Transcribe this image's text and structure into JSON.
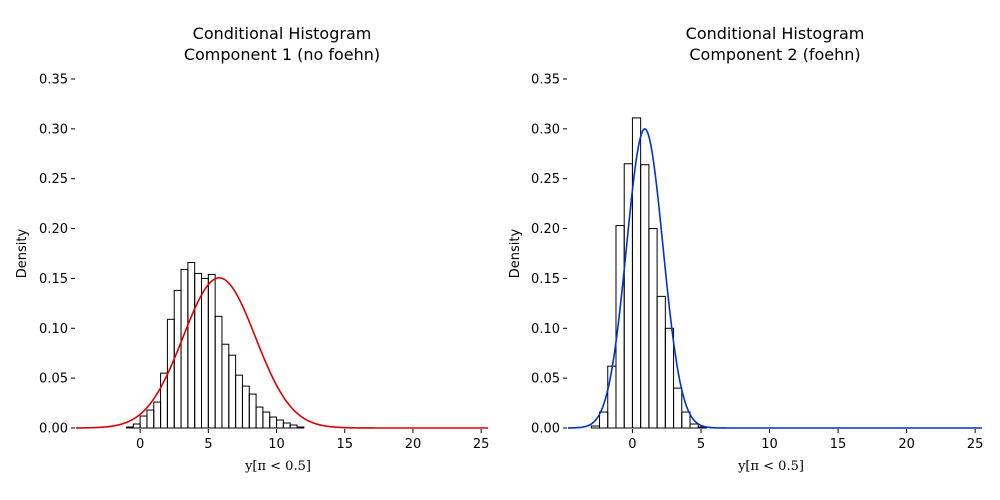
{
  "chart_data": [
    {
      "type": "bar",
      "title_line1": "Conditional Histogram",
      "title_line2": "Component 1 (no foehn)",
      "xlabel": "y[π < 0.5]",
      "ylabel": "Density",
      "xlim": [
        -4.7,
        25.5
      ],
      "ylim": [
        0,
        0.35
      ],
      "xticks": [
        0,
        5,
        10,
        15,
        20,
        25
      ],
      "yticks": [
        0.0,
        0.05,
        0.1,
        0.15,
        0.2,
        0.25,
        0.3,
        0.35
      ],
      "ytick_labels": [
        "0.00",
        "0.05",
        "0.10",
        "0.15",
        "0.20",
        "0.25",
        "0.30",
        "0.35"
      ],
      "bin_start": -1.0,
      "bin_width": 0.5,
      "densities": [
        0.001,
        0.004,
        0.012,
        0.018,
        0.026,
        0.055,
        0.109,
        0.138,
        0.159,
        0.166,
        0.155,
        0.15,
        0.154,
        0.112,
        0.084,
        0.073,
        0.053,
        0.042,
        0.034,
        0.021,
        0.016,
        0.011,
        0.008,
        0.005,
        0.003,
        0.001
      ],
      "curve": {
        "type": "normal",
        "mean": 5.8,
        "sd": 2.65,
        "color": "#dd0000"
      }
    },
    {
      "type": "bar",
      "title_line1": "Conditional Histogram",
      "title_line2": "Component 2 (foehn)",
      "xlabel": "y[π < 0.5]",
      "ylabel": "Density",
      "xlim": [
        -4.7,
        25.5
      ],
      "ylim": [
        0,
        0.35
      ],
      "xticks": [
        0,
        5,
        10,
        15,
        20,
        25
      ],
      "yticks": [
        0.0,
        0.05,
        0.1,
        0.15,
        0.2,
        0.25,
        0.3,
        0.35
      ],
      "ytick_labels": [
        "0.00",
        "0.05",
        "0.10",
        "0.15",
        "0.20",
        "0.25",
        "0.30",
        "0.35"
      ],
      "bin_start": -3.0,
      "bin_width": 0.6,
      "densities": [
        0.002,
        0.016,
        0.062,
        0.203,
        0.265,
        0.311,
        0.264,
        0.2,
        0.132,
        0.1,
        0.04,
        0.016,
        0.004,
        0.001
      ],
      "curve": {
        "type": "normal",
        "mean": 0.9,
        "sd": 1.33,
        "color": "#0033cc"
      }
    }
  ]
}
